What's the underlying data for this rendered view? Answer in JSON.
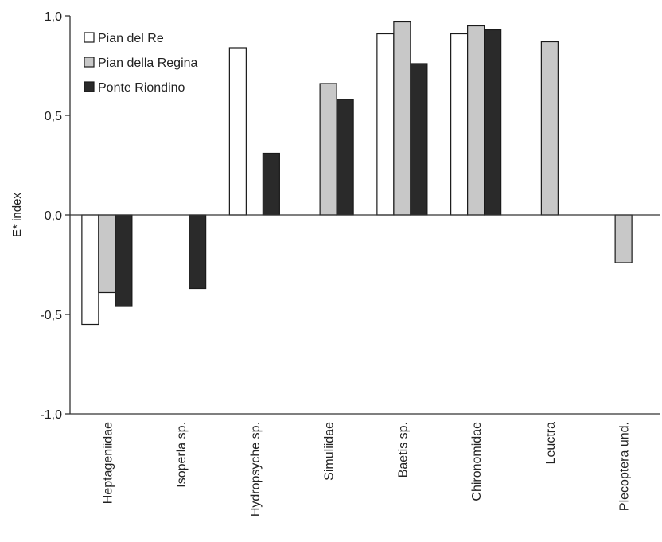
{
  "chart_data": {
    "type": "bar",
    "title": "",
    "xlabel": "",
    "ylabel": "E* index",
    "ylim": [
      -1.0,
      1.0
    ],
    "yticks": [
      "-1,0",
      "-0,5",
      "0,0",
      "0,5",
      "1,0"
    ],
    "ytick_values": [
      -1.0,
      -0.5,
      0.0,
      0.5,
      1.0
    ],
    "grid": false,
    "legend_position": "top-left",
    "categories": [
      "Heptageniidae",
      "Isoperla sp.",
      "Hydropsyche sp.",
      "Simuliidae",
      "Baetis sp.",
      "Chironomidae",
      "Leuctra",
      "Plecoptera und."
    ],
    "series": [
      {
        "name": "Pian del Re",
        "color": "#ffffff",
        "values": [
          -0.55,
          null,
          0.84,
          null,
          0.91,
          0.91,
          null,
          null
        ]
      },
      {
        "name": "Pian della Regina",
        "color": "#c8c8c8",
        "values": [
          -0.39,
          null,
          null,
          0.66,
          0.97,
          0.95,
          0.87,
          -0.24
        ]
      },
      {
        "name": "Ponte Riondino",
        "color": "#2a2a2a",
        "values": [
          -0.46,
          -0.37,
          0.31,
          0.58,
          0.76,
          0.93,
          null,
          null
        ]
      }
    ]
  }
}
